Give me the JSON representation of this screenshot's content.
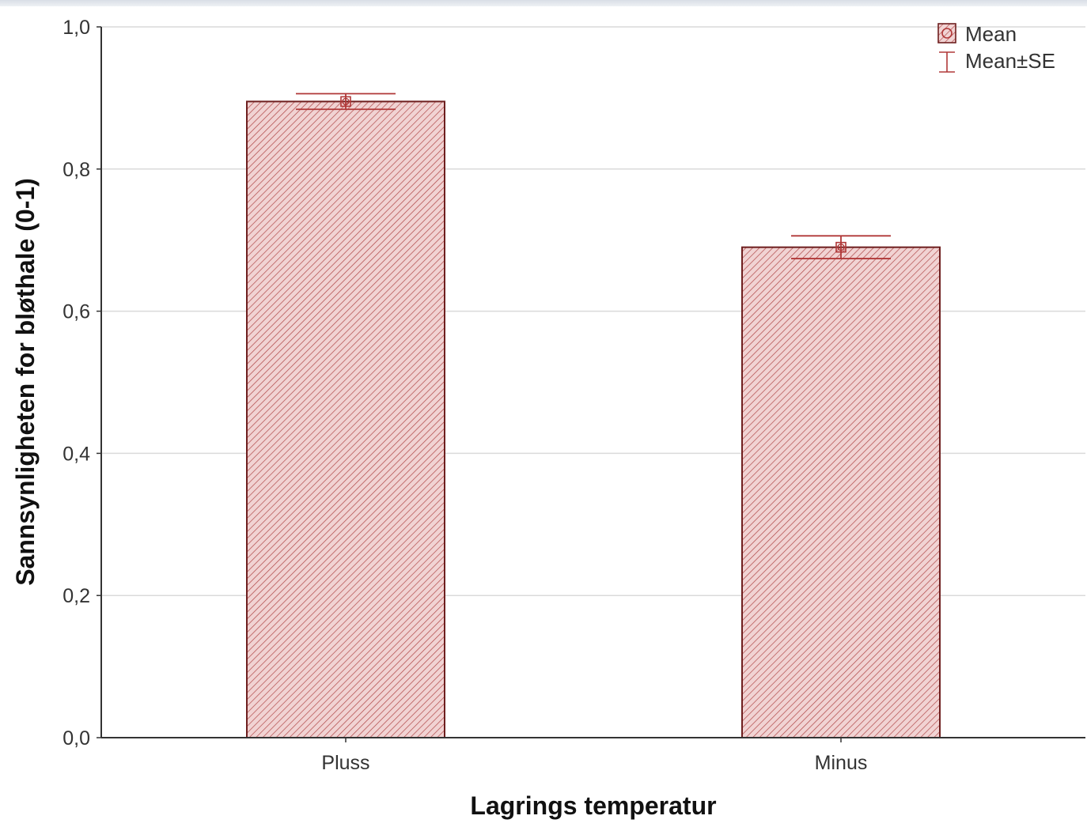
{
  "chart_data": {
    "type": "bar",
    "categories": [
      "Pluss",
      "Minus"
    ],
    "series": [
      {
        "values": [
          0.895,
          0.69
        ],
        "se": [
          0.011,
          0.016
        ]
      }
    ],
    "xlabel": "Lagrings temperatur",
    "ylabel": "Sannsynligheten for bløthale (0-1)",
    "ylim": [
      0,
      1.0
    ],
    "yticks": [
      0.0,
      0.2,
      0.4,
      0.6,
      0.8,
      1.0
    ],
    "ytick_labels": [
      "0,0",
      "0,2",
      "0,4",
      "0,6",
      "0,8",
      "1,0"
    ],
    "grid": true,
    "legend": {
      "position": "top-right",
      "entries": [
        {
          "label": "Mean",
          "marker": "hatched-square"
        },
        {
          "label": "Mean±SE",
          "marker": "error-bar"
        }
      ]
    },
    "colors": {
      "bar_fill": "#f1d3d3",
      "bar_hatch": "#b04848",
      "bar_edge": "#6e1f1f",
      "error_bar": "#b03838",
      "grid": "#dadada",
      "axis": "#333333"
    }
  }
}
